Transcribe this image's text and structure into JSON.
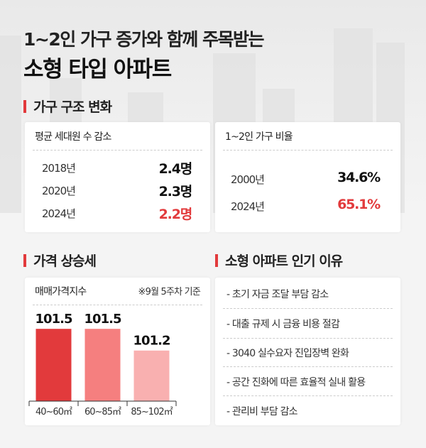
{
  "title_line1": "1~2인 가구 증가와 함께 주목받는",
  "title_line2": "소형 타입 아파트",
  "section1": {
    "heading": "가구 구조 변화",
    "household_size": {
      "title": "평균 세대원 수 감소",
      "rows": [
        {
          "year": "2018년",
          "value": "2.4명"
        },
        {
          "year": "2020년",
          "value": "2.3명"
        },
        {
          "year": "2024년",
          "value": "2.2명"
        }
      ]
    },
    "small_household_ratio": {
      "title": "1~2인 가구 비율",
      "rows": [
        {
          "year": "2000년",
          "value": "34.6%"
        },
        {
          "year": "2024년",
          "value": "65.1%"
        }
      ]
    }
  },
  "section2": {
    "heading": "가격 상승세",
    "chart_title": "매매가격지수",
    "note": "※9월 5주차 기준"
  },
  "section3": {
    "heading": "소형 아파트 인기 이유",
    "items": [
      "- 초기 자금 조달 부담 감소",
      "- 대출 규제 시 금융 비용 절감",
      "- 3040 실수요자 진입장벽 완화",
      "- 공간 진화에 따른 효율적 실내 활용",
      "- 관리비 부담 감소"
    ]
  },
  "colors": {
    "accent": "#e23a3c",
    "highlight_value": "#e23a3c"
  },
  "chart_data": {
    "type": "bar",
    "title": "매매가격지수",
    "categories": [
      "40~60㎡",
      "60~85㎡",
      "85~102㎡"
    ],
    "values": [
      101.5,
      101.5,
      101.2
    ],
    "data_labels": [
      "101.5",
      "101.5",
      "101.2"
    ],
    "bar_colors": [
      "#e23a3c",
      "#f57f7f",
      "#f9b0b0"
    ],
    "ylim": [
      100.5,
      101.6
    ],
    "grid": false
  }
}
